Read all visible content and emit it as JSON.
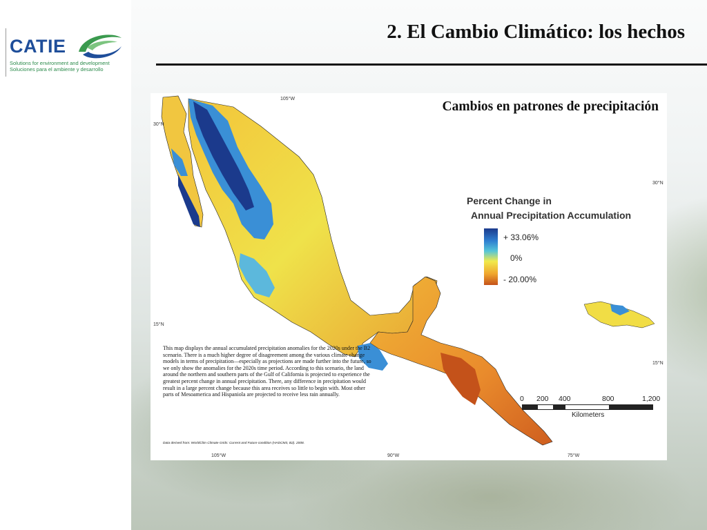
{
  "logo": {
    "name": "CATIE",
    "tagline_en": "Solutions for environment and development",
    "tagline_es": "Soluciones para el ambiente y desarrollo",
    "brand_color": "#1f4e9a",
    "accent_color": "#2a8a4a"
  },
  "slide": {
    "title": "2. El Cambio Climático: los hechos"
  },
  "map": {
    "subtitle": "Cambios en patrones de precipitación",
    "coordinates": {
      "top_105w": "105°W",
      "left_30n": "30°N",
      "right_30n": "30°N",
      "left_15n": "15°N",
      "right_15n": "15°N",
      "bottom_105w": "105°W",
      "bottom_90w": "90°W",
      "bottom_75w": "75°W"
    },
    "legend": {
      "title_line1": "Percent Change in",
      "title_line2": "Annual Precipitation Accumulation",
      "max_label": "+ 33.06%",
      "mid_label": "0%",
      "min_label": "- 20.00%",
      "colors": [
        "#1b3a8c",
        "#2f7fd0",
        "#56c5d8",
        "#f1ea4c",
        "#f0a72e",
        "#c4521a"
      ]
    },
    "scale": {
      "ticks": [
        "0",
        "200",
        "400",
        "800",
        "1,200"
      ],
      "unit": "Kilometers"
    },
    "description": "This map displays the annual accumulated precipitation anomalies for the 2020s under the B2 scenario.   There is a much higher degree of disagreement among the various climate change models in terms of precipitation—especially as projections are made further into the future, so we only show the anomalies for the 2020s time period.   According to this scenario, the land around the northern and southern parts of the Gulf of California is projected to experience the greatest percent change in annual precipitation.   There, any difference in precipitation would result in a large percent change because this area receives so little to begin with.   Most other parts of Mesoamerica and Hispaniola are projected to receive less rain annually.",
    "data_source": "Data derived from: WorldClim Climate Grids: Current and Future condition (HADCM3, B2). 2008."
  }
}
